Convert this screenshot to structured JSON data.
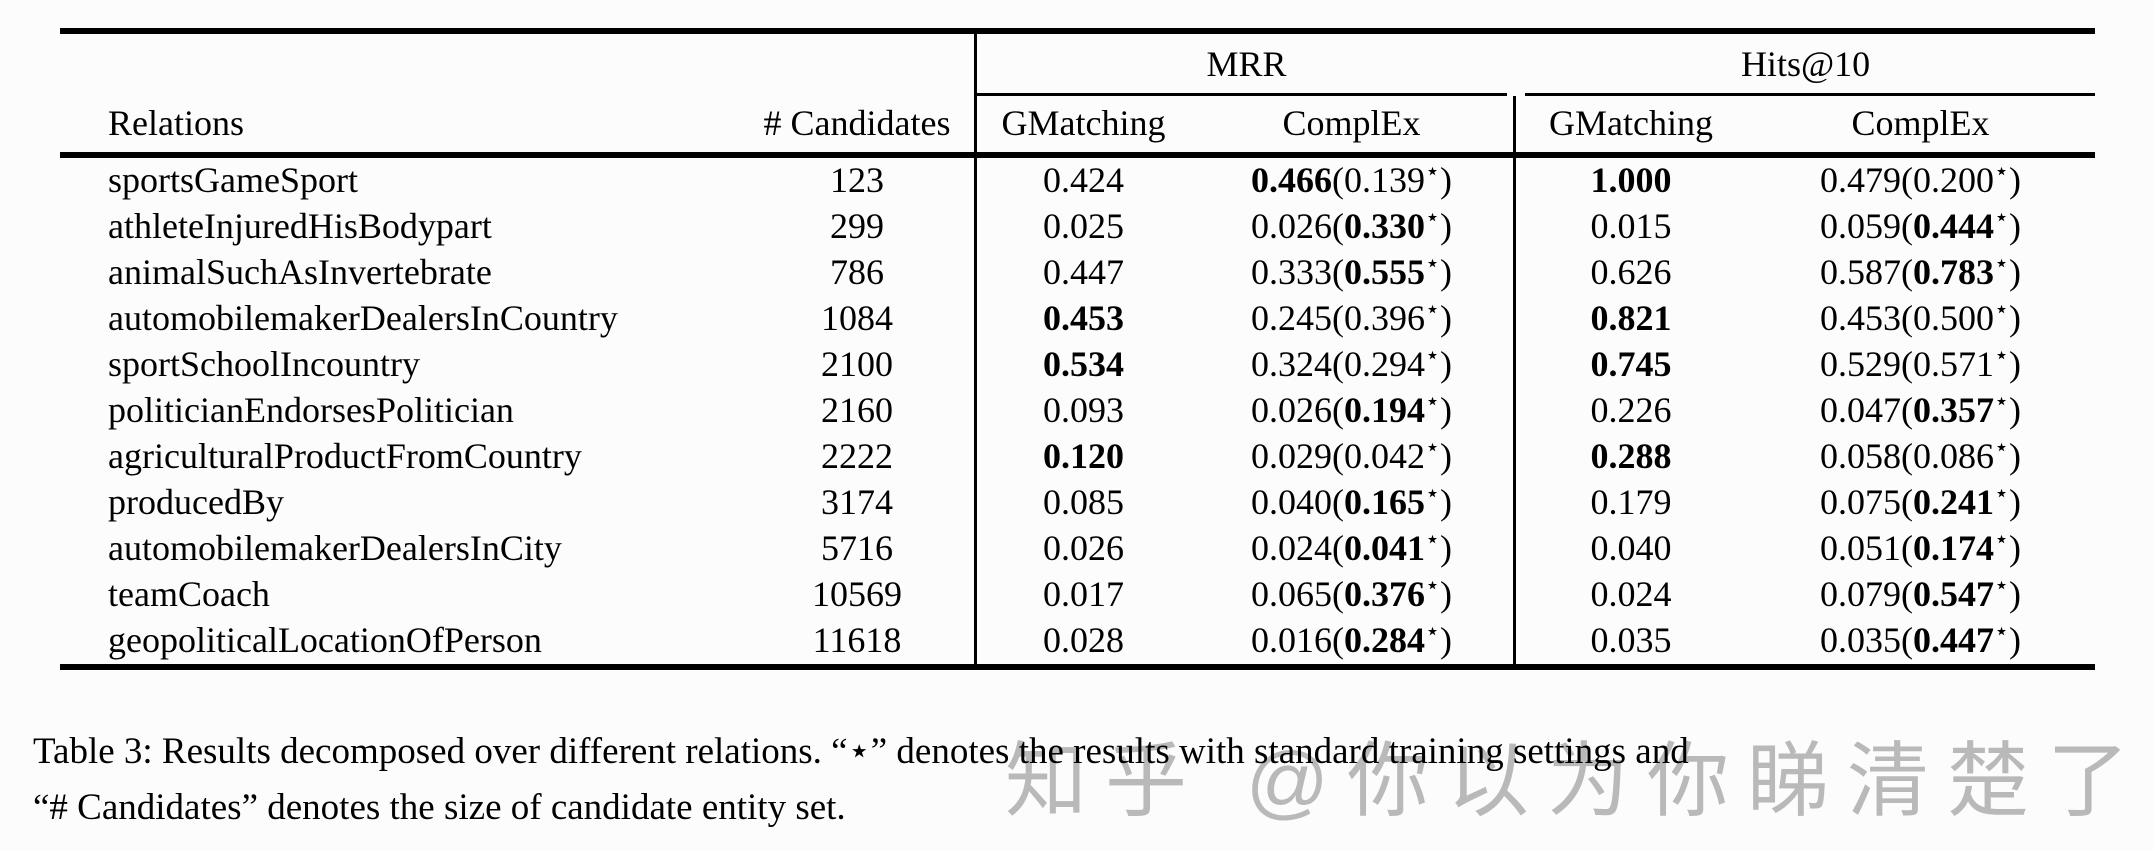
{
  "page": {
    "background": "#fcfcfc",
    "text_color": "#000000"
  },
  "table": {
    "star_symbol": "⋆",
    "headers": {
      "relations": "Relations",
      "candidates": "# Candidates",
      "group_mrr": "MRR",
      "group_hits10": "Hits@10",
      "sub_gmatching_mrr": "GMatching",
      "sub_complex_mrr": "ComplEx",
      "sub_gmatching_hits10": "GMatching",
      "sub_complex_hits10": "ComplEx"
    },
    "rows": [
      {
        "relation": "sportsGameSport",
        "candidates": "123",
        "mrr": {
          "gmatching": "0.424",
          "gmatching_bold": false,
          "complex": "0.466",
          "complex_bold": true,
          "complex_star": "0.139",
          "complex_star_bold": false
        },
        "hits10": {
          "gmatching": "1.000",
          "gmatching_bold": true,
          "complex": "0.479",
          "complex_bold": false,
          "complex_star": "0.200",
          "complex_star_bold": false
        }
      },
      {
        "relation": "athleteInjuredHisBodypart",
        "candidates": "299",
        "mrr": {
          "gmatching": "0.025",
          "gmatching_bold": false,
          "complex": "0.026",
          "complex_bold": false,
          "complex_star": "0.330",
          "complex_star_bold": true
        },
        "hits10": {
          "gmatching": "0.015",
          "gmatching_bold": false,
          "complex": "0.059",
          "complex_bold": false,
          "complex_star": "0.444",
          "complex_star_bold": true
        }
      },
      {
        "relation": "animalSuchAsInvertebrate",
        "candidates": "786",
        "mrr": {
          "gmatching": "0.447",
          "gmatching_bold": false,
          "complex": "0.333",
          "complex_bold": false,
          "complex_star": "0.555",
          "complex_star_bold": true
        },
        "hits10": {
          "gmatching": "0.626",
          "gmatching_bold": false,
          "complex": "0.587",
          "complex_bold": false,
          "complex_star": "0.783",
          "complex_star_bold": true
        }
      },
      {
        "relation": "automobilemakerDealersInCountry",
        "candidates": "1084",
        "mrr": {
          "gmatching": "0.453",
          "gmatching_bold": true,
          "complex": "0.245",
          "complex_bold": false,
          "complex_star": "0.396",
          "complex_star_bold": false
        },
        "hits10": {
          "gmatching": "0.821",
          "gmatching_bold": true,
          "complex": "0.453",
          "complex_bold": false,
          "complex_star": "0.500",
          "complex_star_bold": false
        }
      },
      {
        "relation": "sportSchoolIncountry",
        "candidates": "2100",
        "mrr": {
          "gmatching": "0.534",
          "gmatching_bold": true,
          "complex": "0.324",
          "complex_bold": false,
          "complex_star": "0.294",
          "complex_star_bold": false
        },
        "hits10": {
          "gmatching": "0.745",
          "gmatching_bold": true,
          "complex": "0.529",
          "complex_bold": false,
          "complex_star": "0.571",
          "complex_star_bold": false
        }
      },
      {
        "relation": "politicianEndorsesPolitician",
        "candidates": "2160",
        "mrr": {
          "gmatching": "0.093",
          "gmatching_bold": false,
          "complex": "0.026",
          "complex_bold": false,
          "complex_star": "0.194",
          "complex_star_bold": true
        },
        "hits10": {
          "gmatching": "0.226",
          "gmatching_bold": false,
          "complex": "0.047",
          "complex_bold": false,
          "complex_star": "0.357",
          "complex_star_bold": true
        }
      },
      {
        "relation": "agriculturalProductFromCountry",
        "candidates": "2222",
        "mrr": {
          "gmatching": "0.120",
          "gmatching_bold": true,
          "complex": "0.029",
          "complex_bold": false,
          "complex_star": "0.042",
          "complex_star_bold": false
        },
        "hits10": {
          "gmatching": "0.288",
          "gmatching_bold": true,
          "complex": "0.058",
          "complex_bold": false,
          "complex_star": "0.086",
          "complex_star_bold": false
        }
      },
      {
        "relation": "producedBy",
        "candidates": "3174",
        "mrr": {
          "gmatching": "0.085",
          "gmatching_bold": false,
          "complex": "0.040",
          "complex_bold": false,
          "complex_star": "0.165",
          "complex_star_bold": true
        },
        "hits10": {
          "gmatching": "0.179",
          "gmatching_bold": false,
          "complex": "0.075",
          "complex_bold": false,
          "complex_star": "0.241",
          "complex_star_bold": true
        }
      },
      {
        "relation": "automobilemakerDealersInCity",
        "candidates": "5716",
        "mrr": {
          "gmatching": "0.026",
          "gmatching_bold": false,
          "complex": "0.024",
          "complex_bold": false,
          "complex_star": "0.041",
          "complex_star_bold": true
        },
        "hits10": {
          "gmatching": "0.040",
          "gmatching_bold": false,
          "complex": "0.051",
          "complex_bold": false,
          "complex_star": "0.174",
          "complex_star_bold": true
        }
      },
      {
        "relation": "teamCoach",
        "candidates": "10569",
        "mrr": {
          "gmatching": "0.017",
          "gmatching_bold": false,
          "complex": "0.065",
          "complex_bold": false,
          "complex_star": "0.376",
          "complex_star_bold": true
        },
        "hits10": {
          "gmatching": "0.024",
          "gmatching_bold": false,
          "complex": "0.079",
          "complex_bold": false,
          "complex_star": "0.547",
          "complex_star_bold": true
        }
      },
      {
        "relation": "geopoliticalLocationOfPerson",
        "candidates": "11618",
        "mrr": {
          "gmatching": "0.028",
          "gmatching_bold": false,
          "complex": "0.016",
          "complex_bold": false,
          "complex_star": "0.284",
          "complex_star_bold": true
        },
        "hits10": {
          "gmatching": "0.035",
          "gmatching_bold": false,
          "complex": "0.035",
          "complex_bold": false,
          "complex_star": "0.447",
          "complex_star_bold": true
        }
      }
    ]
  },
  "caption": {
    "line1": "Table 3: Results decomposed over different relations. “⋆” denotes the results with standard training settings and",
    "line2": "“# Candidates” denotes the size of candidate entity set."
  },
  "watermark": {
    "text": "知乎 @你以为你睇清楚了",
    "color": "#b9b9b9"
  }
}
